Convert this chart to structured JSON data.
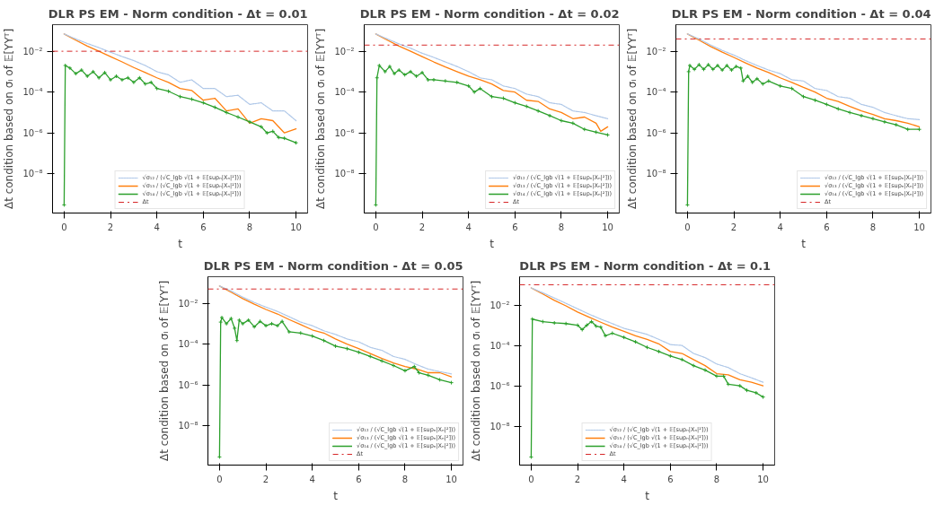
{
  "chart_data": [
    {
      "type": "line",
      "title": "DLR PS EM  - Norm condition - Δt = 0.01",
      "xlabel": "t",
      "ylabel": "Δt condition based on σᵢ of 𝔼[YYᵀ]",
      "log": "y",
      "grid": false,
      "legend": "bottom",
      "xlim": [
        -0.5,
        10.5
      ],
      "xticks": [
        0,
        2,
        4,
        6,
        8,
        10
      ],
      "ylim": [
        1.2e-10,
        0.2
      ],
      "yticks": [
        {
          "value": 1e-08,
          "label": "10⁻⁸"
        },
        {
          "value": 1e-06,
          "label": "10⁻⁶"
        },
        {
          "value": 0.0001,
          "label": "10⁻⁴"
        },
        {
          "value": 0.01,
          "label": "10⁻²"
        }
      ],
      "ref_lines": [
        {
          "axis": "y",
          "value": 0.01,
          "label": "Δt",
          "color": "#d62728",
          "line_style": "dashdot"
        }
      ],
      "series": [
        {
          "name": "√σ₁₂ / (√C_lgb √(1 + 𝔼[supₙ|Xₙ|²]))",
          "color": "#aec7e8",
          "line_style": "dotted",
          "marker": "none",
          "x": [
            0,
            0.5,
            1,
            1.5,
            2,
            2.5,
            3,
            3.5,
            4,
            4.5,
            5,
            5.5,
            6,
            6.5,
            7,
            7.5,
            8,
            8.5,
            9,
            9.5,
            10
          ],
          "values": [
            0.07,
            0.04,
            0.024,
            0.015,
            0.009,
            0.0055,
            0.0035,
            0.002,
            0.001,
            0.0007,
            0.0003,
            0.0004,
            0.00015,
            0.00015,
            6e-05,
            7e-05,
            2.5e-05,
            3e-05,
            1.2e-05,
            1.2e-05,
            4e-06
          ]
        },
        {
          "name": "√σ₁₃ / (√C_lgb √(1 + 𝔼[supₙ|Xₙ|²]))",
          "color": "#ff7f0e",
          "line_style": "solid",
          "marker": "none",
          "x": [
            0,
            0.5,
            1,
            1.5,
            2,
            2.5,
            3,
            3.5,
            4,
            4.5,
            5,
            5.5,
            6,
            6.5,
            7,
            7.5,
            8,
            8.5,
            9,
            9.5,
            10
          ],
          "values": [
            0.07,
            0.035,
            0.018,
            0.01,
            0.0055,
            0.003,
            0.0016,
            0.0009,
            0.0005,
            0.0003,
            0.00015,
            0.00012,
            4e-05,
            5e-05,
            1.2e-05,
            1.5e-05,
            3e-06,
            5e-06,
            4e-06,
            1e-06,
            1.6e-06
          ]
        },
        {
          "name": "√σ₁₄ / (√C_lgb √(1 + 𝔼[supₙ|Xₙ|²]))",
          "color": "#2ca02c",
          "line_style": "solid",
          "marker": "cross",
          "x": [
            0,
            0.05,
            0.25,
            0.5,
            0.75,
            1,
            1.25,
            1.5,
            1.75,
            2,
            2.25,
            2.5,
            2.75,
            3,
            3.25,
            3.5,
            3.75,
            4,
            4.5,
            5,
            5.5,
            6,
            6.5,
            7,
            7.5,
            8,
            8.5,
            8.75,
            9,
            9.25,
            9.5,
            10
          ],
          "values": [
            3e-10,
            0.002,
            0.0015,
            0.0008,
            0.0012,
            0.0006,
            0.001,
            0.0005,
            0.0009,
            0.0004,
            0.0006,
            0.0004,
            0.0005,
            0.0003,
            0.0005,
            0.00025,
            0.0003,
            0.00015,
            0.00011,
            6e-05,
            4.5e-05,
            3e-05,
            1.8e-05,
            1e-05,
            6e-06,
            3.5e-06,
            2e-06,
            1e-06,
            1.2e-06,
            6e-07,
            5.5e-07,
            3.3e-07
          ]
        }
      ]
    },
    {
      "type": "line",
      "title": "DLR PS EM  - Norm condition - Δt = 0.02",
      "xlabel": "t",
      "ylabel": "Δt condition based on σᵢ of 𝔼[YYᵀ]",
      "log": "y",
      "grid": false,
      "legend": "bottom right",
      "xlim": [
        -0.5,
        10.5
      ],
      "xticks": [
        0,
        2,
        4,
        6,
        8,
        10
      ],
      "ylim": [
        1.2e-10,
        0.2
      ],
      "yticks": [
        {
          "value": 1e-08,
          "label": "10⁻⁸"
        },
        {
          "value": 1e-06,
          "label": "10⁻⁶"
        },
        {
          "value": 0.0001,
          "label": "10⁻⁴"
        },
        {
          "value": 0.01,
          "label": "10⁻²"
        }
      ],
      "ref_lines": [
        {
          "axis": "y",
          "value": 0.02,
          "label": "Δt",
          "color": "#d62728",
          "line_style": "dashdot"
        }
      ],
      "series": [
        {
          "name": "√σ₁₂ / (√C_lgb √(1 + 𝔼[supₙ|Xₙ|²]))",
          "color": "#aec7e8",
          "line_style": "dotted",
          "marker": "none",
          "x": [
            0,
            0.5,
            1,
            1.5,
            2,
            2.5,
            3,
            3.5,
            4,
            4.5,
            5,
            5.5,
            6,
            6.5,
            7,
            7.5,
            8,
            8.5,
            9,
            9.5,
            10
          ],
          "values": [
            0.07,
            0.04,
            0.023,
            0.014,
            0.008,
            0.005,
            0.003,
            0.0018,
            0.001,
            0.0005,
            0.0004,
            0.0002,
            0.00015,
            8e-05,
            6e-05,
            3e-05,
            2.5e-05,
            1.2e-05,
            1e-05,
            7e-06,
            5e-06
          ]
        },
        {
          "name": "√σ₁₃ / (√C_lgb √(1 + 𝔼[supₙ|Xₙ|²]))",
          "color": "#ff7f0e",
          "line_style": "solid",
          "marker": "none",
          "x": [
            0,
            0.5,
            1,
            1.5,
            2,
            2.5,
            3,
            3.5,
            4,
            4.5,
            5,
            5.5,
            6,
            6.5,
            7,
            7.5,
            8,
            8.5,
            9,
            9.5,
            9.7,
            10
          ],
          "values": [
            0.07,
            0.035,
            0.018,
            0.01,
            0.0055,
            0.003,
            0.0017,
            0.001,
            0.0006,
            0.0004,
            0.00025,
            0.00012,
            0.0001,
            4e-05,
            3.5e-05,
            1.5e-05,
            1e-05,
            5e-06,
            6e-06,
            3e-06,
            1.2e-06,
            2e-06
          ]
        },
        {
          "name": "√σ₁₄ / (√C_lgb √(1 + 𝔼[supₙ|Xₙ|²]))",
          "color": "#2ca02c",
          "line_style": "solid",
          "marker": "cross",
          "x": [
            0,
            0.05,
            0.15,
            0.4,
            0.6,
            0.8,
            1,
            1.25,
            1.5,
            1.75,
            2,
            2.25,
            2.5,
            3,
            3.5,
            4,
            4.25,
            4.5,
            5,
            5.5,
            6,
            6.5,
            7,
            7.5,
            8,
            8.5,
            9,
            9.5,
            10
          ],
          "values": [
            3e-10,
            0.0005,
            0.002,
            0.001,
            0.0018,
            0.0008,
            0.0012,
            0.0007,
            0.001,
            0.0006,
            0.0009,
            0.0004,
            0.0004,
            0.00035,
            0.0003,
            0.0002,
            0.0001,
            0.00015,
            6e-05,
            5e-05,
            3e-05,
            2e-05,
            1.2e-05,
            7e-06,
            4e-06,
            3e-06,
            1.5e-06,
            1.1e-06,
            8e-07
          ]
        }
      ]
    },
    {
      "type": "line",
      "title": "DLR PS EM  - Norm condition - Δt = 0.04",
      "xlabel": "t",
      "ylabel": "Δt condition based on σᵢ of 𝔼[YYᵀ]",
      "log": "y",
      "grid": false,
      "legend": "bottom right",
      "xlim": [
        -0.5,
        10.5
      ],
      "xticks": [
        0,
        2,
        4,
        6,
        8,
        10
      ],
      "ylim": [
        1.2e-10,
        0.2
      ],
      "yticks": [
        {
          "value": 1e-08,
          "label": "10⁻⁸"
        },
        {
          "value": 1e-06,
          "label": "10⁻⁶"
        },
        {
          "value": 0.0001,
          "label": "10⁻⁴"
        },
        {
          "value": 0.01,
          "label": "10⁻²"
        }
      ],
      "ref_lines": [
        {
          "axis": "y",
          "value": 0.04,
          "label": "Δt",
          "color": "#d62728",
          "line_style": "dashdot"
        }
      ],
      "series": [
        {
          "name": "√σ₁₂ / (√C_lgb √(1 + 𝔼[supₙ|Xₙ|²]))",
          "color": "#aec7e8",
          "line_style": "dotted",
          "marker": "none",
          "x": [
            0,
            0.5,
            1,
            1.5,
            2,
            2.5,
            3,
            3.5,
            4,
            4.5,
            5,
            5.5,
            6,
            6.5,
            7,
            7.5,
            8,
            8.5,
            9,
            9.5,
            10
          ],
          "values": [
            0.07,
            0.04,
            0.02,
            0.011,
            0.0065,
            0.0035,
            0.002,
            0.0012,
            0.0008,
            0.0004,
            0.00035,
            0.00015,
            0.00012,
            6e-05,
            5e-05,
            2.5e-05,
            1.8e-05,
            1e-05,
            7e-06,
            5e-06,
            4.5e-06
          ]
        },
        {
          "name": "√σ₁₃ / (√C_lgb √(1 + 𝔼[supₙ|Xₙ|²]))",
          "color": "#ff7f0e",
          "line_style": "solid",
          "marker": "none",
          "x": [
            0,
            0.5,
            1,
            1.5,
            2,
            2.5,
            3,
            3.5,
            4,
            4.5,
            5,
            5.5,
            6,
            6.5,
            7,
            7.5,
            8,
            8.5,
            9,
            9.5,
            10
          ],
          "values": [
            0.07,
            0.035,
            0.017,
            0.009,
            0.005,
            0.0027,
            0.0015,
            0.0009,
            0.0005,
            0.0003,
            0.00017,
            0.0001,
            5e-05,
            3.5e-05,
            2e-05,
            1.2e-05,
            8e-06,
            5e-06,
            4e-06,
            3e-06,
            2e-06
          ]
        },
        {
          "name": "√σ₁₄ / (√C_lgb √(1 + 𝔼[supₙ|Xₙ|²]))",
          "color": "#2ca02c",
          "line_style": "solid",
          "marker": "cross",
          "x": [
            0,
            0.05,
            0.1,
            0.3,
            0.5,
            0.7,
            0.9,
            1.1,
            1.3,
            1.5,
            1.7,
            1.9,
            2.1,
            2.3,
            2.4,
            2.6,
            2.8,
            3,
            3.25,
            3.5,
            4,
            4.5,
            5,
            5.5,
            6,
            6.5,
            7,
            7.5,
            8,
            8.5,
            9,
            9.5,
            10
          ],
          "values": [
            3e-10,
            0.001,
            0.002,
            0.0013,
            0.0022,
            0.0013,
            0.0022,
            0.0013,
            0.002,
            0.0012,
            0.002,
            0.0012,
            0.0018,
            0.0015,
            0.00035,
            0.0006,
            0.0003,
            0.00045,
            0.00025,
            0.00035,
            0.0002,
            0.00015,
            6e-05,
            4e-05,
            2.5e-05,
            1.5e-05,
            1e-05,
            7e-06,
            5e-06,
            3.5e-06,
            2.5e-06,
            1.5e-06,
            1.5e-06
          ]
        }
      ]
    },
    {
      "type": "line",
      "title": "DLR PS EM  - Norm condition - Δt = 0.05",
      "xlabel": "t",
      "ylabel": "Δt condition based on σᵢ of 𝔼[YYᵀ]",
      "log": "y",
      "grid": false,
      "legend": "bottom right",
      "xlim": [
        -0.5,
        10.5
      ],
      "xticks": [
        0,
        2,
        4,
        6,
        8,
        10
      ],
      "ylim": [
        1.2e-10,
        0.2
      ],
      "yticks": [
        {
          "value": 1e-08,
          "label": "10⁻⁸"
        },
        {
          "value": 1e-06,
          "label": "10⁻⁶"
        },
        {
          "value": 0.0001,
          "label": "10⁻⁴"
        },
        {
          "value": 0.01,
          "label": "10⁻²"
        }
      ],
      "ref_lines": [
        {
          "axis": "y",
          "value": 0.05,
          "label": "Δt",
          "color": "#d62728",
          "line_style": "dashdot"
        }
      ],
      "series": [
        {
          "name": "√σ₁₂ / (√C_lgb √(1 + 𝔼[supₙ|Xₙ|²]))",
          "color": "#aec7e8",
          "line_style": "dotted",
          "marker": "none",
          "x": [
            0,
            0.5,
            1,
            1.5,
            2,
            2.5,
            3,
            3.5,
            4,
            4.5,
            5,
            5.5,
            6,
            6.5,
            7,
            7.5,
            8,
            8.5,
            9,
            9.5,
            10
          ],
          "values": [
            0.07,
            0.04,
            0.02,
            0.011,
            0.0065,
            0.004,
            0.0022,
            0.0012,
            0.0008,
            0.00045,
            0.0003,
            0.00018,
            0.00013,
            7e-05,
            5e-05,
            2.5e-05,
            1.8e-05,
            1e-05,
            6e-06,
            4.5e-06,
            3.5e-06
          ]
        },
        {
          "name": "√σ₁₃ / (√C_lgb √(1 + 𝔼[supₙ|Xₙ|²]))",
          "color": "#ff7f0e",
          "line_style": "solid",
          "marker": "none",
          "x": [
            0,
            0.5,
            1,
            1.5,
            2,
            2.5,
            3,
            3.5,
            4,
            4.5,
            5,
            5.5,
            6,
            6.5,
            7,
            7.5,
            8,
            8.5,
            9,
            9.5,
            10
          ],
          "values": [
            0.07,
            0.035,
            0.017,
            0.009,
            0.005,
            0.003,
            0.0016,
            0.0009,
            0.0005,
            0.00035,
            0.00018,
            0.0001,
            6e-05,
            3.5e-05,
            2e-05,
            1.2e-05,
            8e-06,
            6e-06,
            4e-06,
            4e-06,
            2.5e-06
          ]
        },
        {
          "name": "√σ₁₄ / (√C_lgb √(1 + 𝔼[supₙ|Xₙ|²]))",
          "color": "#2ca02c",
          "line_style": "solid",
          "marker": "cross",
          "x": [
            0,
            0.05,
            0.1,
            0.3,
            0.5,
            0.65,
            0.75,
            0.85,
            1,
            1.25,
            1.5,
            1.75,
            2,
            2.25,
            2.5,
            2.7,
            3,
            3.5,
            4,
            4.5,
            5,
            5.5,
            6,
            6.5,
            7,
            7.5,
            8,
            8.4,
            8.6,
            9,
            9.5,
            10
          ],
          "values": [
            3e-10,
            0.0012,
            0.002,
            0.001,
            0.0018,
            0.0006,
            0.00015,
            0.0015,
            0.001,
            0.0015,
            0.0007,
            0.0013,
            0.0008,
            0.001,
            0.0008,
            0.0013,
            0.0004,
            0.00035,
            0.00025,
            0.00015,
            8e-05,
            6e-05,
            4e-05,
            2.5e-05,
            1.5e-05,
            9e-06,
            5e-06,
            8e-06,
            4e-06,
            3e-06,
            1.8e-06,
            1.3e-06
          ]
        }
      ]
    },
    {
      "type": "line",
      "title": "DLR PS EM  - Norm condition - Δt = 0.1",
      "xlabel": "t",
      "ylabel": "Δt condition based on σᵢ of 𝔼[YYᵀ]",
      "log": "y",
      "grid": false,
      "legend": "bottom",
      "xlim": [
        -0.5,
        10.5
      ],
      "xticks": [
        0,
        2,
        4,
        6,
        8,
        10
      ],
      "ylim": [
        1.2e-10,
        0.25
      ],
      "yticks": [
        {
          "value": 1e-08,
          "label": "10⁻⁸"
        },
        {
          "value": 1e-06,
          "label": "10⁻⁶"
        },
        {
          "value": 0.0001,
          "label": "10⁻⁴"
        },
        {
          "value": 0.01,
          "label": "10⁻²"
        }
      ],
      "ref_lines": [
        {
          "axis": "y",
          "value": 0.1,
          "label": "Δt",
          "color": "#d62728",
          "line_style": "dashdot"
        }
      ],
      "series": [
        {
          "name": "√σ₁₂ / (√C_lgb √(1 + 𝔼[supₙ|Xₙ|²]))",
          "color": "#aec7e8",
          "line_style": "dotted",
          "marker": "none",
          "x": [
            0,
            0.5,
            1,
            1.5,
            2,
            2.5,
            3,
            3.5,
            4,
            4.5,
            5,
            5.5,
            6,
            6.5,
            7,
            7.5,
            8,
            8.5,
            9,
            9.5,
            10
          ],
          "values": [
            0.07,
            0.04,
            0.022,
            0.012,
            0.0065,
            0.0035,
            0.002,
            0.0012,
            0.0007,
            0.0005,
            0.00035,
            0.0002,
            0.00011,
            0.0001,
            4e-05,
            2.5e-05,
            1.2e-05,
            8e-06,
            4e-06,
            2.5e-06,
            1.5e-06
          ]
        },
        {
          "name": "√σ₁₃ / (√C_lgb √(1 + 𝔼[supₙ|Xₙ|²]))",
          "color": "#ff7f0e",
          "line_style": "solid",
          "marker": "none",
          "x": [
            0,
            0.5,
            1,
            1.5,
            2,
            2.5,
            3,
            3.5,
            4,
            4.5,
            5,
            5.5,
            6,
            6.5,
            7,
            7.5,
            8,
            8.5,
            9,
            9.5,
            10
          ],
          "values": [
            0.07,
            0.035,
            0.017,
            0.009,
            0.0045,
            0.0025,
            0.0014,
            0.0008,
            0.0005,
            0.0003,
            0.0002,
            0.00012,
            5e-05,
            4e-05,
            2e-05,
            1e-05,
            4e-06,
            3.5e-06,
            2e-06,
            1.5e-06,
            1e-06
          ]
        },
        {
          "name": "√σ₁₄ / (√C_lgb √(1 + 𝔼[supₙ|Xₙ|²]))",
          "color": "#2ca02c",
          "line_style": "solid",
          "marker": "cross",
          "x": [
            0,
            0.05,
            0.5,
            1,
            1.5,
            2,
            2.2,
            2.4,
            2.6,
            2.8,
            3,
            3.2,
            3.5,
            4,
            4.5,
            5,
            5.5,
            6,
            6.5,
            7,
            7.5,
            8,
            8.3,
            8.5,
            9,
            9.3,
            9.7,
            10
          ],
          "values": [
            3e-10,
            0.002,
            0.0015,
            0.0013,
            0.0012,
            0.001,
            0.0006,
            0.001,
            0.0015,
            0.0009,
            0.0008,
            0.0003,
            0.0004,
            0.00025,
            0.00015,
            8e-05,
            5e-05,
            3e-05,
            2e-05,
            1e-05,
            6e-06,
            3e-06,
            3e-06,
            1.2e-06,
            1e-06,
            6e-07,
            4.5e-07,
            2.8e-07
          ]
        }
      ]
    }
  ]
}
